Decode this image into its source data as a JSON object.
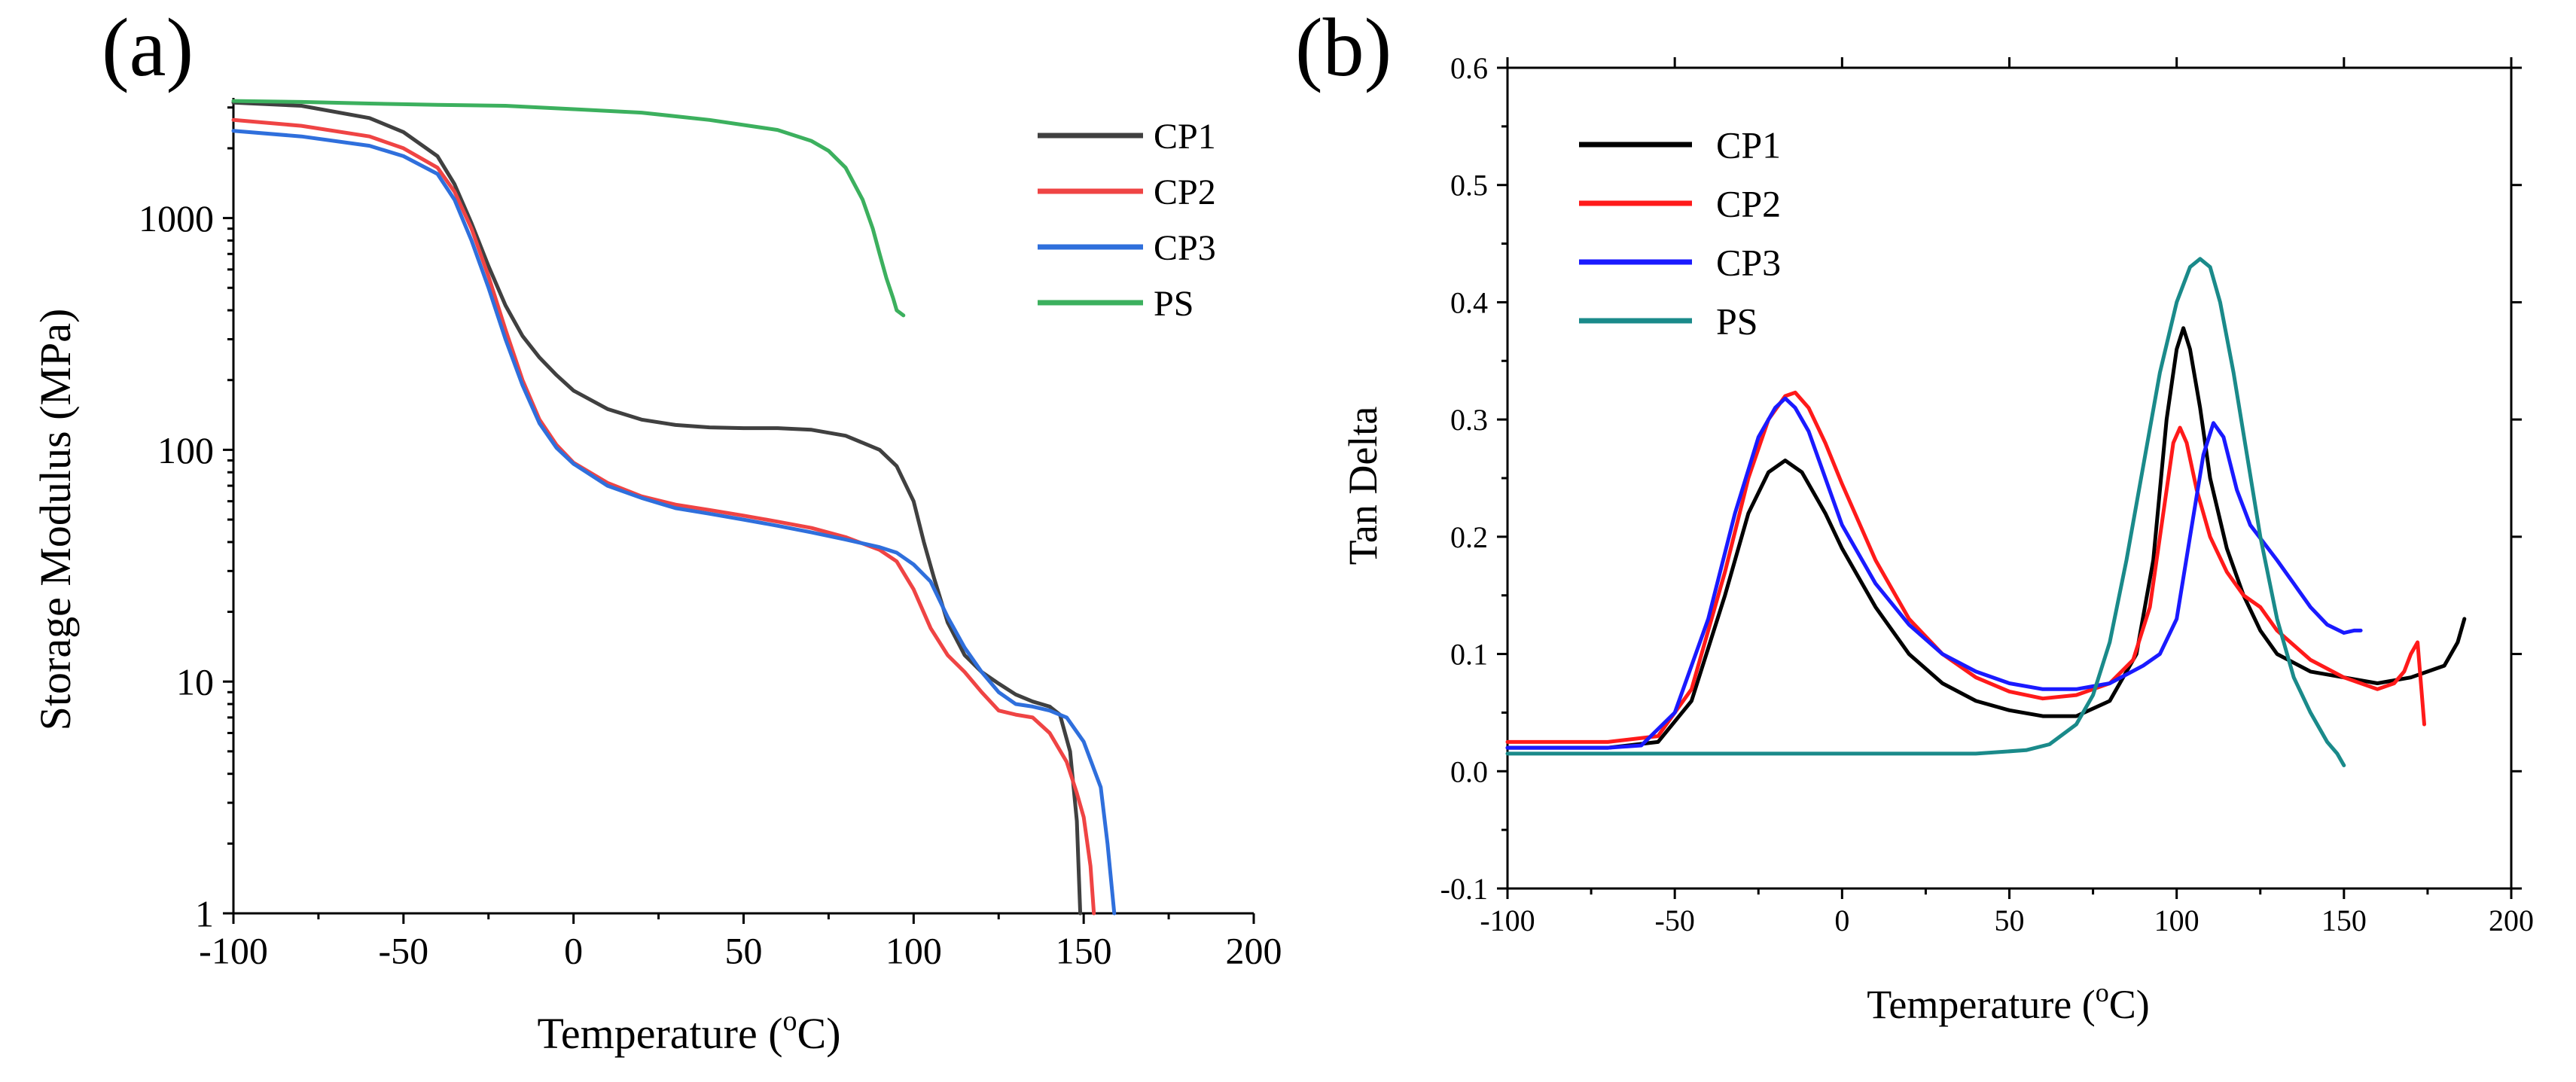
{
  "chart_data": [
    {
      "panel_label": "(a)",
      "type": "line",
      "xlabel": "Temperature (",
      "xlabel_sup": "o",
      "xlabel_end": "C)",
      "ylabel": "Storage Modulus (MPa)",
      "xlim": [
        -100,
        200
      ],
      "ylim": [
        1,
        3300
      ],
      "yscale": "log",
      "x_ticks": [
        -100,
        -50,
        0,
        50,
        100,
        150,
        200
      ],
      "x_tick_labels": [
        "-100",
        "-50",
        "0",
        "50",
        "100",
        "150",
        "200"
      ],
      "y_ticks": [
        1,
        10,
        100,
        1000
      ],
      "y_tick_labels": [
        "1",
        "10",
        "100",
        "1000"
      ],
      "legend_position": "top-right",
      "series": [
        {
          "name": "CP1",
          "color": "#404040",
          "x": [
            -100,
            -80,
            -60,
            -50,
            -40,
            -35,
            -30,
            -25,
            -20,
            -15,
            -10,
            -5,
            0,
            10,
            20,
            30,
            40,
            50,
            60,
            70,
            80,
            90,
            95,
            100,
            103,
            106,
            110,
            115,
            120,
            125,
            130,
            135,
            140,
            143,
            146,
            148,
            149
          ],
          "y": [
            3150,
            3050,
            2700,
            2350,
            1850,
            1400,
            950,
            620,
            420,
            310,
            250,
            210,
            180,
            150,
            135,
            128,
            125,
            124,
            124,
            122,
            115,
            100,
            85,
            60,
            40,
            28,
            18,
            13,
            11,
            9.8,
            8.8,
            8.2,
            7.8,
            7.2,
            5,
            2.5,
            1
          ]
        },
        {
          "name": "CP2",
          "color": "#ef4444",
          "x": [
            -100,
            -80,
            -60,
            -50,
            -40,
            -35,
            -30,
            -25,
            -20,
            -15,
            -10,
            -5,
            0,
            10,
            20,
            30,
            40,
            50,
            60,
            70,
            80,
            90,
            95,
            100,
            105,
            110,
            115,
            120,
            125,
            130,
            135,
            140,
            145,
            148,
            150,
            152,
            153
          ],
          "y": [
            2650,
            2500,
            2250,
            2000,
            1650,
            1300,
            900,
            560,
            330,
            200,
            135,
            105,
            88,
            72,
            63,
            58,
            55,
            52,
            49,
            46,
            42,
            37,
            33,
            25,
            17,
            13,
            11,
            9,
            7.5,
            7.2,
            7,
            6,
            4.5,
            3.3,
            2.6,
            1.6,
            1
          ]
        },
        {
          "name": "CP3",
          "color": "#2f6fdc",
          "x": [
            -100,
            -80,
            -60,
            -50,
            -40,
            -35,
            -30,
            -25,
            -20,
            -15,
            -10,
            -5,
            0,
            10,
            20,
            30,
            40,
            50,
            60,
            70,
            80,
            90,
            95,
            100,
            105,
            110,
            115,
            120,
            125,
            130,
            135,
            140,
            145,
            150,
            153,
            155,
            157,
            159
          ],
          "y": [
            2380,
            2250,
            2050,
            1850,
            1550,
            1200,
            800,
            500,
            300,
            190,
            130,
            102,
            87,
            70,
            62,
            56,
            53,
            50,
            47,
            44,
            41,
            38,
            36,
            32,
            27,
            19,
            14,
            11,
            9,
            8,
            7.8,
            7.5,
            7,
            5.5,
            4.2,
            3.5,
            2,
            1
          ]
        },
        {
          "name": "PS",
          "color": "#3cb05e",
          "x": [
            -100,
            -80,
            -60,
            -40,
            -20,
            0,
            20,
            40,
            60,
            70,
            75,
            80,
            85,
            88,
            90,
            92,
            94,
            95,
            97
          ],
          "y": [
            3200,
            3170,
            3120,
            3080,
            3050,
            2950,
            2850,
            2650,
            2400,
            2150,
            1950,
            1650,
            1200,
            900,
            700,
            550,
            450,
            400,
            380
          ]
        }
      ]
    },
    {
      "panel_label": "(b)",
      "type": "line",
      "xlabel": "Temperature (",
      "xlabel_sup": "o",
      "xlabel_end": "C)",
      "ylabel": "Tan Delta",
      "xlim": [
        -100,
        200
      ],
      "ylim": [
        -0.1,
        0.6
      ],
      "x_ticks": [
        -100,
        -50,
        0,
        50,
        100,
        150,
        200
      ],
      "x_tick_labels": [
        "-100",
        "-50",
        "0",
        "50",
        "100",
        "150",
        "200"
      ],
      "y_ticks": [
        -0.1,
        0.0,
        0.1,
        0.2,
        0.3,
        0.4,
        0.5,
        0.6
      ],
      "y_tick_labels": [
        "-0.1",
        "0.0",
        "0.1",
        "0.2",
        "0.3",
        "0.4",
        "0.5",
        "0.6"
      ],
      "legend_position": "top-left",
      "series": [
        {
          "name": "CP1",
          "color": "#000000",
          "x": [
            -100,
            -70,
            -55,
            -45,
            -35,
            -28,
            -22,
            -17,
            -12,
            -5,
            0,
            10,
            20,
            30,
            40,
            50,
            60,
            70,
            80,
            88,
            93,
            97,
            100,
            102,
            104,
            107,
            110,
            115,
            120,
            125,
            130,
            140,
            150,
            160,
            170,
            175,
            180,
            184,
            186
          ],
          "y": [
            0.02,
            0.02,
            0.025,
            0.06,
            0.15,
            0.22,
            0.255,
            0.265,
            0.255,
            0.22,
            0.19,
            0.14,
            0.1,
            0.075,
            0.06,
            0.052,
            0.047,
            0.047,
            0.06,
            0.1,
            0.18,
            0.3,
            0.36,
            0.378,
            0.36,
            0.31,
            0.25,
            0.19,
            0.15,
            0.12,
            0.1,
            0.085,
            0.08,
            0.075,
            0.08,
            0.085,
            0.09,
            0.11,
            0.13
          ]
        },
        {
          "name": "CP2",
          "color": "#ff1a1a",
          "x": [
            -100,
            -70,
            -55,
            -45,
            -35,
            -28,
            -22,
            -17,
            -14,
            -10,
            -5,
            0,
            10,
            20,
            30,
            40,
            50,
            60,
            70,
            80,
            87,
            92,
            96,
            99,
            101,
            103,
            106,
            110,
            115,
            120,
            125,
            130,
            140,
            150,
            160,
            165,
            168,
            170,
            172,
            174
          ],
          "y": [
            0.025,
            0.025,
            0.03,
            0.07,
            0.17,
            0.25,
            0.3,
            0.32,
            0.323,
            0.31,
            0.28,
            0.245,
            0.18,
            0.13,
            0.1,
            0.08,
            0.068,
            0.062,
            0.065,
            0.075,
            0.095,
            0.14,
            0.22,
            0.28,
            0.293,
            0.28,
            0.24,
            0.2,
            0.17,
            0.15,
            0.14,
            0.12,
            0.095,
            0.08,
            0.07,
            0.075,
            0.085,
            0.1,
            0.11,
            0.04
          ]
        },
        {
          "name": "CP3",
          "color": "#1a1aff",
          "x": [
            -100,
            -70,
            -60,
            -50,
            -40,
            -32,
            -25,
            -20,
            -17,
            -14,
            -10,
            -5,
            0,
            10,
            20,
            30,
            40,
            50,
            60,
            70,
            80,
            90,
            95,
            100,
            104,
            108,
            111,
            114,
            118,
            122,
            126,
            130,
            135,
            140,
            145,
            150,
            153,
            155
          ],
          "y": [
            0.02,
            0.02,
            0.022,
            0.05,
            0.13,
            0.22,
            0.285,
            0.31,
            0.318,
            0.31,
            0.29,
            0.25,
            0.21,
            0.16,
            0.125,
            0.1,
            0.085,
            0.075,
            0.07,
            0.07,
            0.075,
            0.09,
            0.1,
            0.13,
            0.2,
            0.27,
            0.297,
            0.285,
            0.24,
            0.21,
            0.195,
            0.18,
            0.16,
            0.14,
            0.125,
            0.118,
            0.12,
            0.12
          ]
        },
        {
          "name": "PS",
          "color": "#1a8a8a",
          "x": [
            -100,
            -50,
            0,
            40,
            55,
            62,
            70,
            75,
            80,
            85,
            90,
            95,
            100,
            104,
            107,
            110,
            113,
            117,
            121,
            125,
            130,
            135,
            140,
            145,
            148,
            150
          ],
          "y": [
            0.015,
            0.015,
            0.015,
            0.015,
            0.018,
            0.023,
            0.04,
            0.065,
            0.11,
            0.18,
            0.26,
            0.34,
            0.4,
            0.43,
            0.437,
            0.43,
            0.4,
            0.34,
            0.27,
            0.2,
            0.13,
            0.08,
            0.05,
            0.025,
            0.015,
            0.005
          ]
        }
      ]
    }
  ]
}
